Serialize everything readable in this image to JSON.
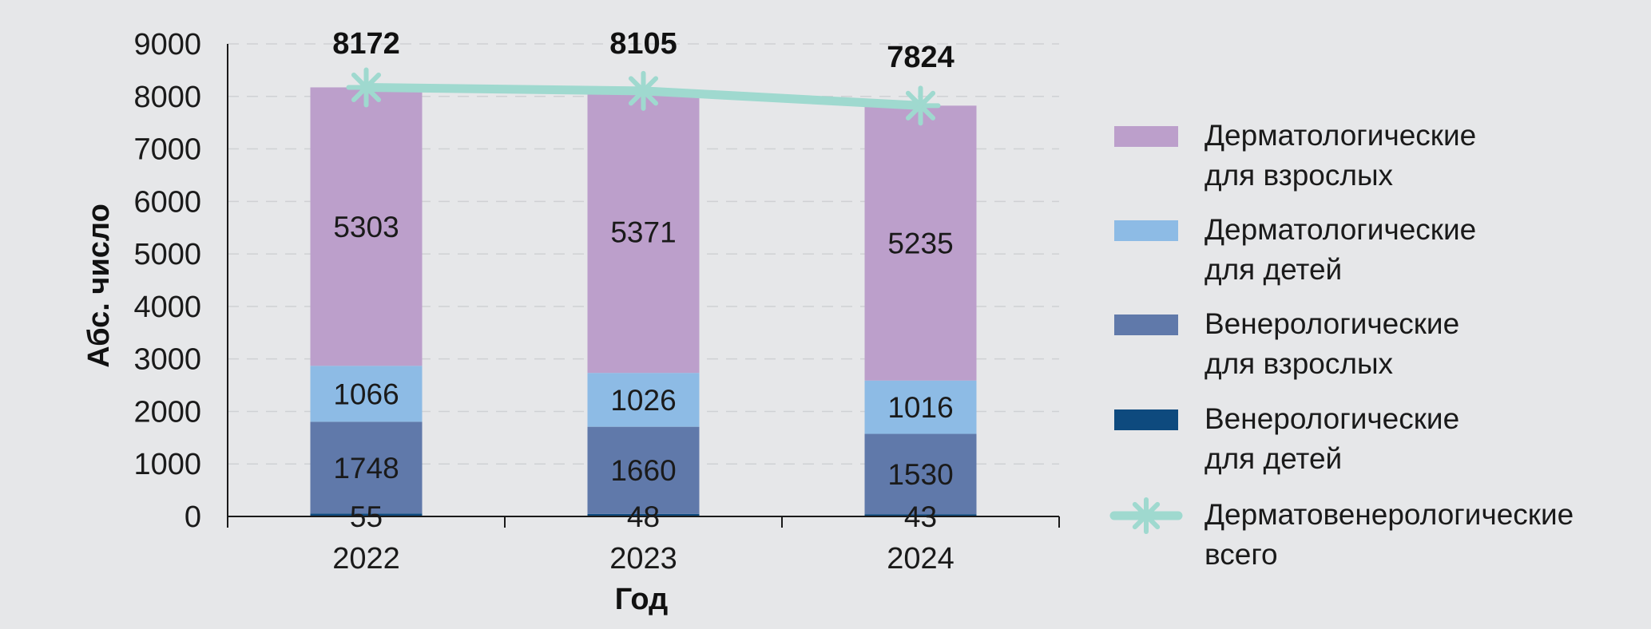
{
  "chart_data": {
    "type": "bar",
    "stacked": true,
    "title": "",
    "xlabel": "Год",
    "ylabel": "Абс. число",
    "ylim": [
      0,
      9000
    ],
    "yticks": [
      "0",
      "1000",
      "2000",
      "3000",
      "4000",
      "5000",
      "6000",
      "7000",
      "8000",
      "9000"
    ],
    "categories": [
      "2022",
      "2023",
      "2024"
    ],
    "grid": "horizontal dashed",
    "legend_position": "right",
    "series": [
      {
        "name": "Венерологические для детей",
        "legend_lines": [
          "Венерологические",
          "для детей"
        ],
        "color": "#0e4a7e",
        "values": [
          55,
          48,
          43
        ]
      },
      {
        "name": "Венерологические для взрослых",
        "legend_lines": [
          "Венерологические",
          "для взрослых"
        ],
        "color": "#6079aa",
        "values": [
          1748,
          1660,
          1530
        ]
      },
      {
        "name": "Дерматологические для детей",
        "legend_lines": [
          "Дерматологические",
          "для детей"
        ],
        "color": "#8dbbe5",
        "values": [
          1066,
          1026,
          1016
        ]
      },
      {
        "name": "Дерматологические для взрослых",
        "legend_lines": [
          "Дерматологические",
          "для взрослых"
        ],
        "color": "#bc9fcb",
        "values": [
          5303,
          5371,
          5235
        ]
      }
    ],
    "line_series": {
      "name": "Дерматовенерологические всего",
      "legend_lines": [
        "Дерматовенерологические",
        "всего"
      ],
      "color": "#9fd9cf",
      "marker": "asterisk",
      "values": [
        8172,
        8105,
        7824
      ]
    },
    "legend_order": [
      "Дерматологические для взрослых",
      "Дерматологические для детей",
      "Венерологические для взрослых",
      "Венерологические для детей",
      "Дерматовенерологические всего"
    ]
  }
}
